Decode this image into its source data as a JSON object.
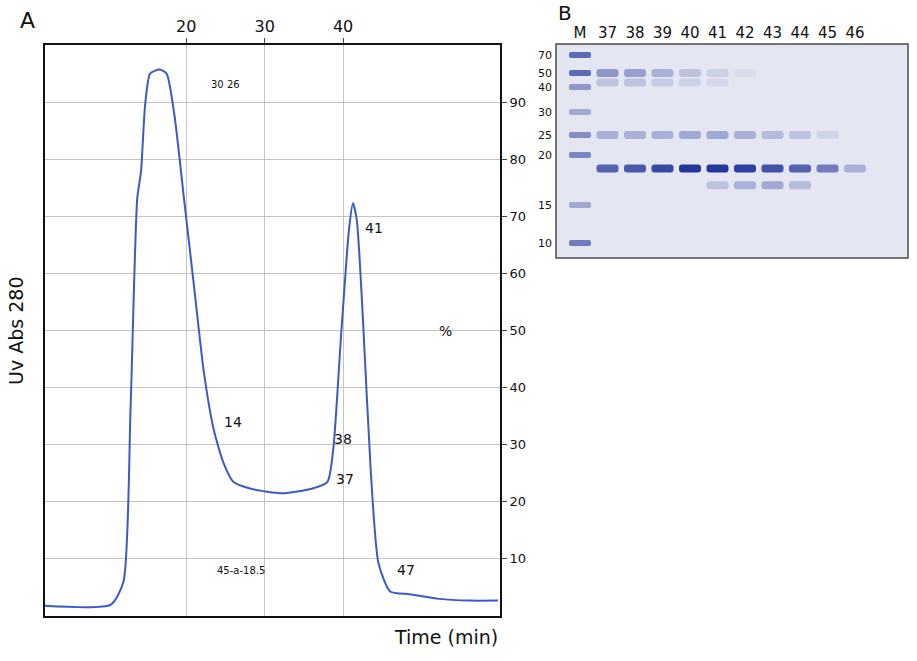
{
  "chart_data": {
    "type": "line",
    "panel_label": "A",
    "y_label": "Uv Abs 280",
    "x_label": "Time (min)",
    "x": [
      2,
      10.4,
      12,
      12.9,
      13.75,
      14.25,
      14.75,
      15.4,
      16.6,
      17.5,
      18.5,
      19.75,
      21,
      22.25,
      23.5,
      24.75,
      26,
      28.5,
      32.25,
      36,
      38,
      38.75,
      39.75,
      40.75,
      41.25,
      41.75,
      42.5,
      43.5,
      44.5,
      46,
      48.5,
      52.25,
      56,
      59.75
    ],
    "values": [
      1.8,
      2,
      6,
      36,
      73,
      78,
      89.3,
      95,
      95.7,
      95,
      87.7,
      72.7,
      57.7,
      42.7,
      32.7,
      26.8,
      23.5,
      22.2,
      21.5,
      22.3,
      23.5,
      29.3,
      49.3,
      67.7,
      72.3,
      69.3,
      52.7,
      26,
      9.3,
      4.3,
      3.8,
      3,
      2.7,
      2.7
    ],
    "color": "#3a5bc7",
    "xlim": [
      2,
      60
    ],
    "xticks": [
      20,
      30,
      40
    ],
    "ylim": [
      0,
      100
    ],
    "yticks": [
      10,
      20,
      30,
      40,
      50,
      60,
      70,
      80,
      90
    ],
    "grid": true,
    "annotations": [
      {
        "text": "14",
        "x": 26,
        "y": 34
      },
      {
        "text": "41",
        "x": 44,
        "y": 68
      },
      {
        "text": "38",
        "x": 40,
        "y": 31
      },
      {
        "text": "37",
        "x": 40.2,
        "y": 24
      },
      {
        "text": "47",
        "x": 48,
        "y": 8
      },
      {
        "text": "%",
        "x": 53,
        "y": 50
      },
      {
        "text": "30 26",
        "x": 25,
        "y": 93
      },
      {
        "text": "45-a-18.5",
        "x": 27,
        "y": 8
      }
    ]
  },
  "gel": {
    "panel_label": "B",
    "lanes": [
      "M",
      "37",
      "38",
      "39",
      "40",
      "41",
      "42",
      "43",
      "44",
      "45",
      "46"
    ],
    "marker_kda": [
      70,
      50,
      40,
      30,
      25,
      20,
      15,
      10
    ],
    "marker_intensity": [
      0.7,
      0.7,
      0.45,
      0.35,
      0.5,
      0.55,
      0.35,
      0.6
    ],
    "bands": [
      [
        {
          "kda": 50,
          "intensity": 0.45
        },
        {
          "kda": 43,
          "intensity": 0.2
        },
        {
          "kda": 25,
          "intensity": 0.3
        },
        {
          "kda": 18.5,
          "intensity": 0.75
        }
      ],
      [
        {
          "kda": 50,
          "intensity": 0.4
        },
        {
          "kda": 43,
          "intensity": 0.2
        },
        {
          "kda": 25,
          "intensity": 0.3
        },
        {
          "kda": 18.5,
          "intensity": 0.8
        }
      ],
      [
        {
          "kda": 50,
          "intensity": 0.3
        },
        {
          "kda": 43,
          "intensity": 0.15
        },
        {
          "kda": 25,
          "intensity": 0.3
        },
        {
          "kda": 18.5,
          "intensity": 0.9
        }
      ],
      [
        {
          "kda": 50,
          "intensity": 0.2
        },
        {
          "kda": 43,
          "intensity": 0.12
        },
        {
          "kda": 25,
          "intensity": 0.35
        },
        {
          "kda": 18.5,
          "intensity": 1
        }
      ],
      [
        {
          "kda": 50,
          "intensity": 0.12
        },
        {
          "kda": 43,
          "intensity": 0.08
        },
        {
          "kda": 25,
          "intensity": 0.35
        },
        {
          "kda": 18.5,
          "intensity": 1
        },
        {
          "kda": 16.8,
          "intensity": 0.2
        }
      ],
      [
        {
          "kda": 50,
          "intensity": 0.05
        },
        {
          "kda": 25,
          "intensity": 0.3
        },
        {
          "kda": 18.5,
          "intensity": 0.95
        },
        {
          "kda": 16.8,
          "intensity": 0.3
        }
      ],
      [
        {
          "kda": 25,
          "intensity": 0.25
        },
        {
          "kda": 18.5,
          "intensity": 0.85
        },
        {
          "kda": 16.8,
          "intensity": 0.35
        }
      ],
      [
        {
          "kda": 25,
          "intensity": 0.2
        },
        {
          "kda": 18.5,
          "intensity": 0.75
        },
        {
          "kda": 16.8,
          "intensity": 0.25
        }
      ],
      [
        {
          "kda": 25,
          "intensity": 0.1
        },
        {
          "kda": 18.5,
          "intensity": 0.6
        }
      ],
      [
        {
          "kda": 18.5,
          "intensity": 0.3
        }
      ]
    ]
  }
}
